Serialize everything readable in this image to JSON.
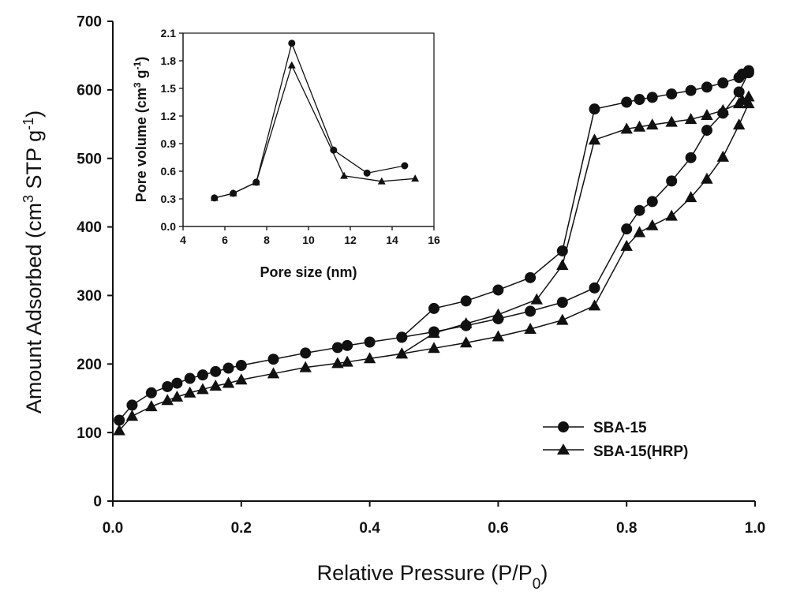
{
  "chart_data": [
    {
      "id": "main",
      "type": "line",
      "title": "",
      "xlabel": {
        "main": "Relative Pressure (P/P",
        "sub": "0",
        "close": ")"
      },
      "ylabel": {
        "pre": "Amount Adsorbed (cm",
        "sup3": "3",
        "mid": " STP g",
        "supneg": "-1",
        "close": ")"
      },
      "xlim": [
        0.0,
        1.0
      ],
      "ylim": [
        0,
        700
      ],
      "x_ticks": [
        "0.0",
        "0.2",
        "0.4",
        "0.6",
        "0.8",
        "1.0"
      ],
      "y_ticks": [
        "0",
        "100",
        "200",
        "300",
        "400",
        "500",
        "600",
        "700"
      ],
      "legend_position": "lower-right",
      "series": [
        {
          "name": "SBA-15",
          "marker": "circle",
          "adsorption": {
            "x": [
              0.01,
              0.03,
              0.06,
              0.085,
              0.1,
              0.12,
              0.14,
              0.16,
              0.18,
              0.2,
              0.25,
              0.3,
              0.35,
              0.365,
              0.4,
              0.45,
              0.5,
              0.55,
              0.6,
              0.65,
              0.7,
              0.75,
              0.8,
              0.82,
              0.84,
              0.87,
              0.9,
              0.925,
              0.95,
              0.975,
              0.99
            ],
            "y": [
              118,
              140,
              158,
              167,
              172,
              179,
              184,
              189,
              194,
              198,
              207,
              216,
              224,
              227,
              232,
              239,
              247,
              256,
              266,
              277,
              290,
              311,
              397,
              424,
              437,
              467,
              501,
              541,
              566,
              597,
              625
            ]
          },
          "desorption": {
            "x": [
              0.99,
              0.98,
              0.975,
              0.95,
              0.925,
              0.9,
              0.87,
              0.84,
              0.82,
              0.8,
              0.75,
              0.7,
              0.65,
              0.6,
              0.55,
              0.5,
              0.45
            ],
            "y": [
              628,
              623,
              618,
              610,
              604,
              599,
              594,
              589,
              586,
              582,
              572,
              365,
              326,
              308,
              292,
              281,
              239
            ]
          }
        },
        {
          "name": "SBA-15(HRP)",
          "marker": "triangle",
          "adsorption": {
            "x": [
              0.01,
              0.03,
              0.06,
              0.085,
              0.1,
              0.12,
              0.14,
              0.16,
              0.18,
              0.2,
              0.25,
              0.3,
              0.35,
              0.365,
              0.4,
              0.45,
              0.5,
              0.55,
              0.6,
              0.65,
              0.7,
              0.75,
              0.8,
              0.82,
              0.84,
              0.87,
              0.9,
              0.925,
              0.95,
              0.975,
              0.99
            ],
            "y": [
              103,
              124,
              138,
              147,
              152,
              158,
              163,
              168,
              172,
              177,
              186,
              195,
              201,
              203,
              208,
              215,
              223,
              231,
              240,
              251,
              264,
              285,
              372,
              392,
              402,
              416,
              443,
              470,
              502,
              549,
              580
            ]
          },
          "desorption": {
            "x": [
              0.99,
              0.98,
              0.975,
              0.95,
              0.925,
              0.9,
              0.87,
              0.84,
              0.82,
              0.8,
              0.75,
              0.7,
              0.66,
              0.6,
              0.55,
              0.5,
              0.45
            ],
            "y": [
              590,
              585,
              580,
              570,
              563,
              557,
              553,
              549,
              546,
              543,
              527,
              344,
              294,
              272,
              259,
              245,
              215
            ]
          }
        }
      ]
    },
    {
      "id": "inset",
      "type": "line",
      "title": "",
      "xlabel": "Pore size (nm)",
      "ylabel": {
        "pre": "Pore volume (cm",
        "sup3": "3",
        "mid": " g",
        "supneg": "-1",
        "close": ")"
      },
      "xlim": [
        4,
        16
      ],
      "ylim": [
        0.0,
        2.1
      ],
      "x_ticks": [
        "4",
        "6",
        "8",
        "10",
        "12",
        "14",
        "16"
      ],
      "y_ticks": [
        "0.0",
        "0.3",
        "0.6",
        "0.9",
        "1.2",
        "1.5",
        "1.8",
        "2.1"
      ],
      "series": [
        {
          "name": "SBA-15",
          "marker": "circle",
          "x": [
            5.5,
            6.4,
            7.5,
            9.2,
            11.2,
            12.8,
            14.6
          ],
          "y": [
            0.31,
            0.36,
            0.48,
            1.99,
            0.83,
            0.58,
            0.66
          ]
        },
        {
          "name": "SBA-15(HRP)",
          "marker": "triangle",
          "x": [
            5.5,
            6.4,
            7.5,
            9.2,
            11.7,
            13.5,
            15.1
          ],
          "y": [
            0.31,
            0.36,
            0.48,
            1.75,
            0.55,
            0.49,
            0.52
          ]
        }
      ]
    }
  ]
}
